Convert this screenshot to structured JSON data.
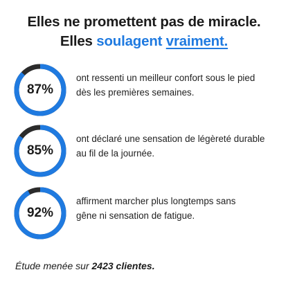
{
  "headline": {
    "line1": "Elles ne promettent pas de miracle.",
    "line2_prefix": "Elles ",
    "line2_accent": "soulagent",
    "line2_space": " ",
    "line2_underlined": "vraiment."
  },
  "colors": {
    "accent": "#1f7ae0",
    "ring_track": "#2b2b2b",
    "text": "#1b1b1b"
  },
  "stats": [
    {
      "percent_label": "87%",
      "value": 0.87,
      "line1": "ont ressenti un meilleur confort sous le pied",
      "line2": "dès les premières semaines."
    },
    {
      "percent_label": "85%",
      "value": 0.85,
      "line1": "ont déclaré une sensation de légèreté durable",
      "line2": "au fil de la journée."
    },
    {
      "percent_label": "92%",
      "value": 0.92,
      "line1": "affirment marcher plus longtemps sans",
      "line2": "gêne ni sensation de fatigue."
    }
  ],
  "footnote": {
    "prefix": "Étude menée sur ",
    "bold": "2423 clientes."
  }
}
